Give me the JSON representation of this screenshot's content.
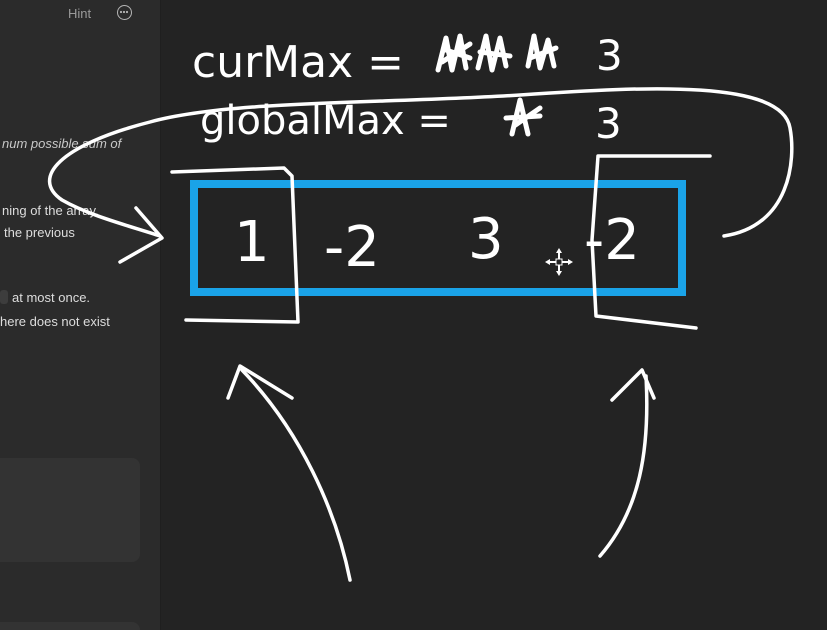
{
  "panel": {
    "hint_label": "Hint",
    "more_icon": "more-options-icon",
    "desc_lines": [
      "num possible sum of",
      "ning of the array.",
      "the previous",
      "at most once.",
      "here does not exist"
    ]
  },
  "board": {
    "ink_color": "#ffffff",
    "box_color": "#1aa3e8",
    "cur_max_label": "curMax =",
    "cur_max_value": "3",
    "global_max_label": "globalMax =",
    "global_max_value": "3",
    "array_values": [
      "1",
      "-2",
      "3",
      "-2"
    ],
    "cursor_icon": "move-cursor-icon"
  }
}
